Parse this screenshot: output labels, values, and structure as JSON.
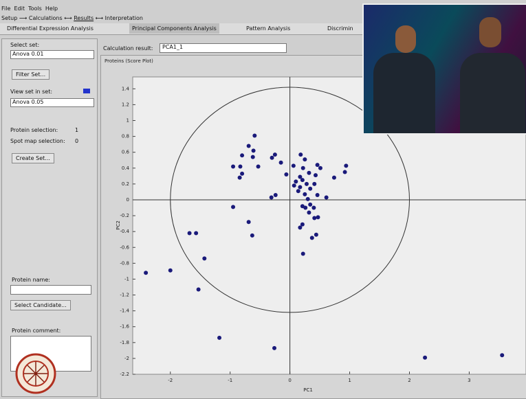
{
  "menu": [
    "File",
    "Edit",
    "Tools",
    "Help"
  ],
  "breadcrumb": [
    "Setup",
    "Calculations",
    "Results",
    "Interpretation"
  ],
  "tabs": [
    "Differential Expression Analysis",
    "Principal Components Analysis",
    "Pattern Analysis",
    "Discrimin"
  ],
  "left_panel": {
    "select_set_label": "Select set:",
    "select_set_value": "Anova 0.01",
    "filter_button": "Filter Set...",
    "view_set_label": "View set in set:",
    "view_set_value": "Anova 0.05",
    "protein_selection_label": "Protein selection:",
    "protein_selection_value": "1",
    "spot_map_label": "Spot map selection:",
    "spot_map_value": "0",
    "create_button": "Create Set...",
    "protein_name_label": "Protein name:",
    "select_candidate_button": "Select Candidate...",
    "protein_comment_label": "Protein comment:"
  },
  "calculation": {
    "label": "Calculation result:",
    "value": "PCA1_1"
  },
  "chart_data": {
    "type": "scatter",
    "title": "Proteins (Score Plot)",
    "x_label": "PC1",
    "y_label": "PC2",
    "color": "#1a1a7a",
    "x": [
      -2.41,
      -2.0,
      -1.68,
      -1.57,
      -1.43,
      -1.53,
      -1.18,
      -0.26,
      2.26,
      3.55,
      -0.95,
      -0.69,
      -0.63,
      -0.59,
      -0.69,
      -0.61,
      -0.8,
      -0.62,
      -0.95,
      -0.83,
      -0.53,
      -0.8,
      -0.84,
      -0.3,
      -0.25,
      -0.15,
      -0.06,
      -0.24,
      -0.31,
      0.06,
      0.18,
      0.25,
      0.22,
      0.32,
      0.46,
      0.51,
      0.43,
      0.17,
      0.1,
      0.07,
      0.21,
      0.28,
      0.34,
      0.14,
      0.17,
      0.25,
      0.3,
      0.46,
      0.41,
      0.61,
      0.74,
      0.92,
      0.94,
      0.21,
      0.26,
      0.34,
      0.4,
      0.32,
      0.47,
      0.41,
      0.21,
      0.17,
      0.44,
      0.37,
      0.22
    ],
    "y": [
      -0.92,
      -0.89,
      -0.42,
      -0.42,
      -0.74,
      -1.13,
      -1.74,
      -1.87,
      -1.99,
      -1.96,
      -0.09,
      -0.28,
      -0.45,
      0.81,
      0.68,
      0.62,
      0.56,
      0.54,
      0.42,
      0.42,
      0.42,
      0.33,
      0.28,
      0.53,
      0.57,
      0.47,
      0.32,
      0.06,
      0.03,
      0.43,
      0.57,
      0.51,
      0.4,
      0.34,
      0.44,
      0.4,
      0.31,
      0.29,
      0.23,
      0.18,
      0.25,
      0.2,
      0.14,
      0.11,
      0.16,
      0.07,
      0.01,
      0.06,
      0.2,
      0.03,
      0.28,
      0.35,
      0.43,
      -0.08,
      -0.1,
      -0.06,
      -0.1,
      -0.16,
      -0.22,
      -0.23,
      -0.31,
      -0.35,
      -0.44,
      -0.48,
      -0.68
    ],
    "xlim": [
      -2.63,
      3.95
    ],
    "ylim": [
      -2.2,
      1.55
    ],
    "xticks": [
      -2,
      -1,
      0,
      1,
      2,
      3
    ],
    "yticks": [
      1.4,
      1.2,
      1,
      0.8,
      0.6,
      0.4,
      0.2,
      0,
      -0.2,
      -0.4,
      -0.6,
      -0.8,
      -1,
      -1.2,
      -1.4,
      -1.6,
      -1.8,
      -2,
      -2.2
    ],
    "reference_ellipse": {
      "rx": 2.0,
      "ry": 1.42
    }
  }
}
